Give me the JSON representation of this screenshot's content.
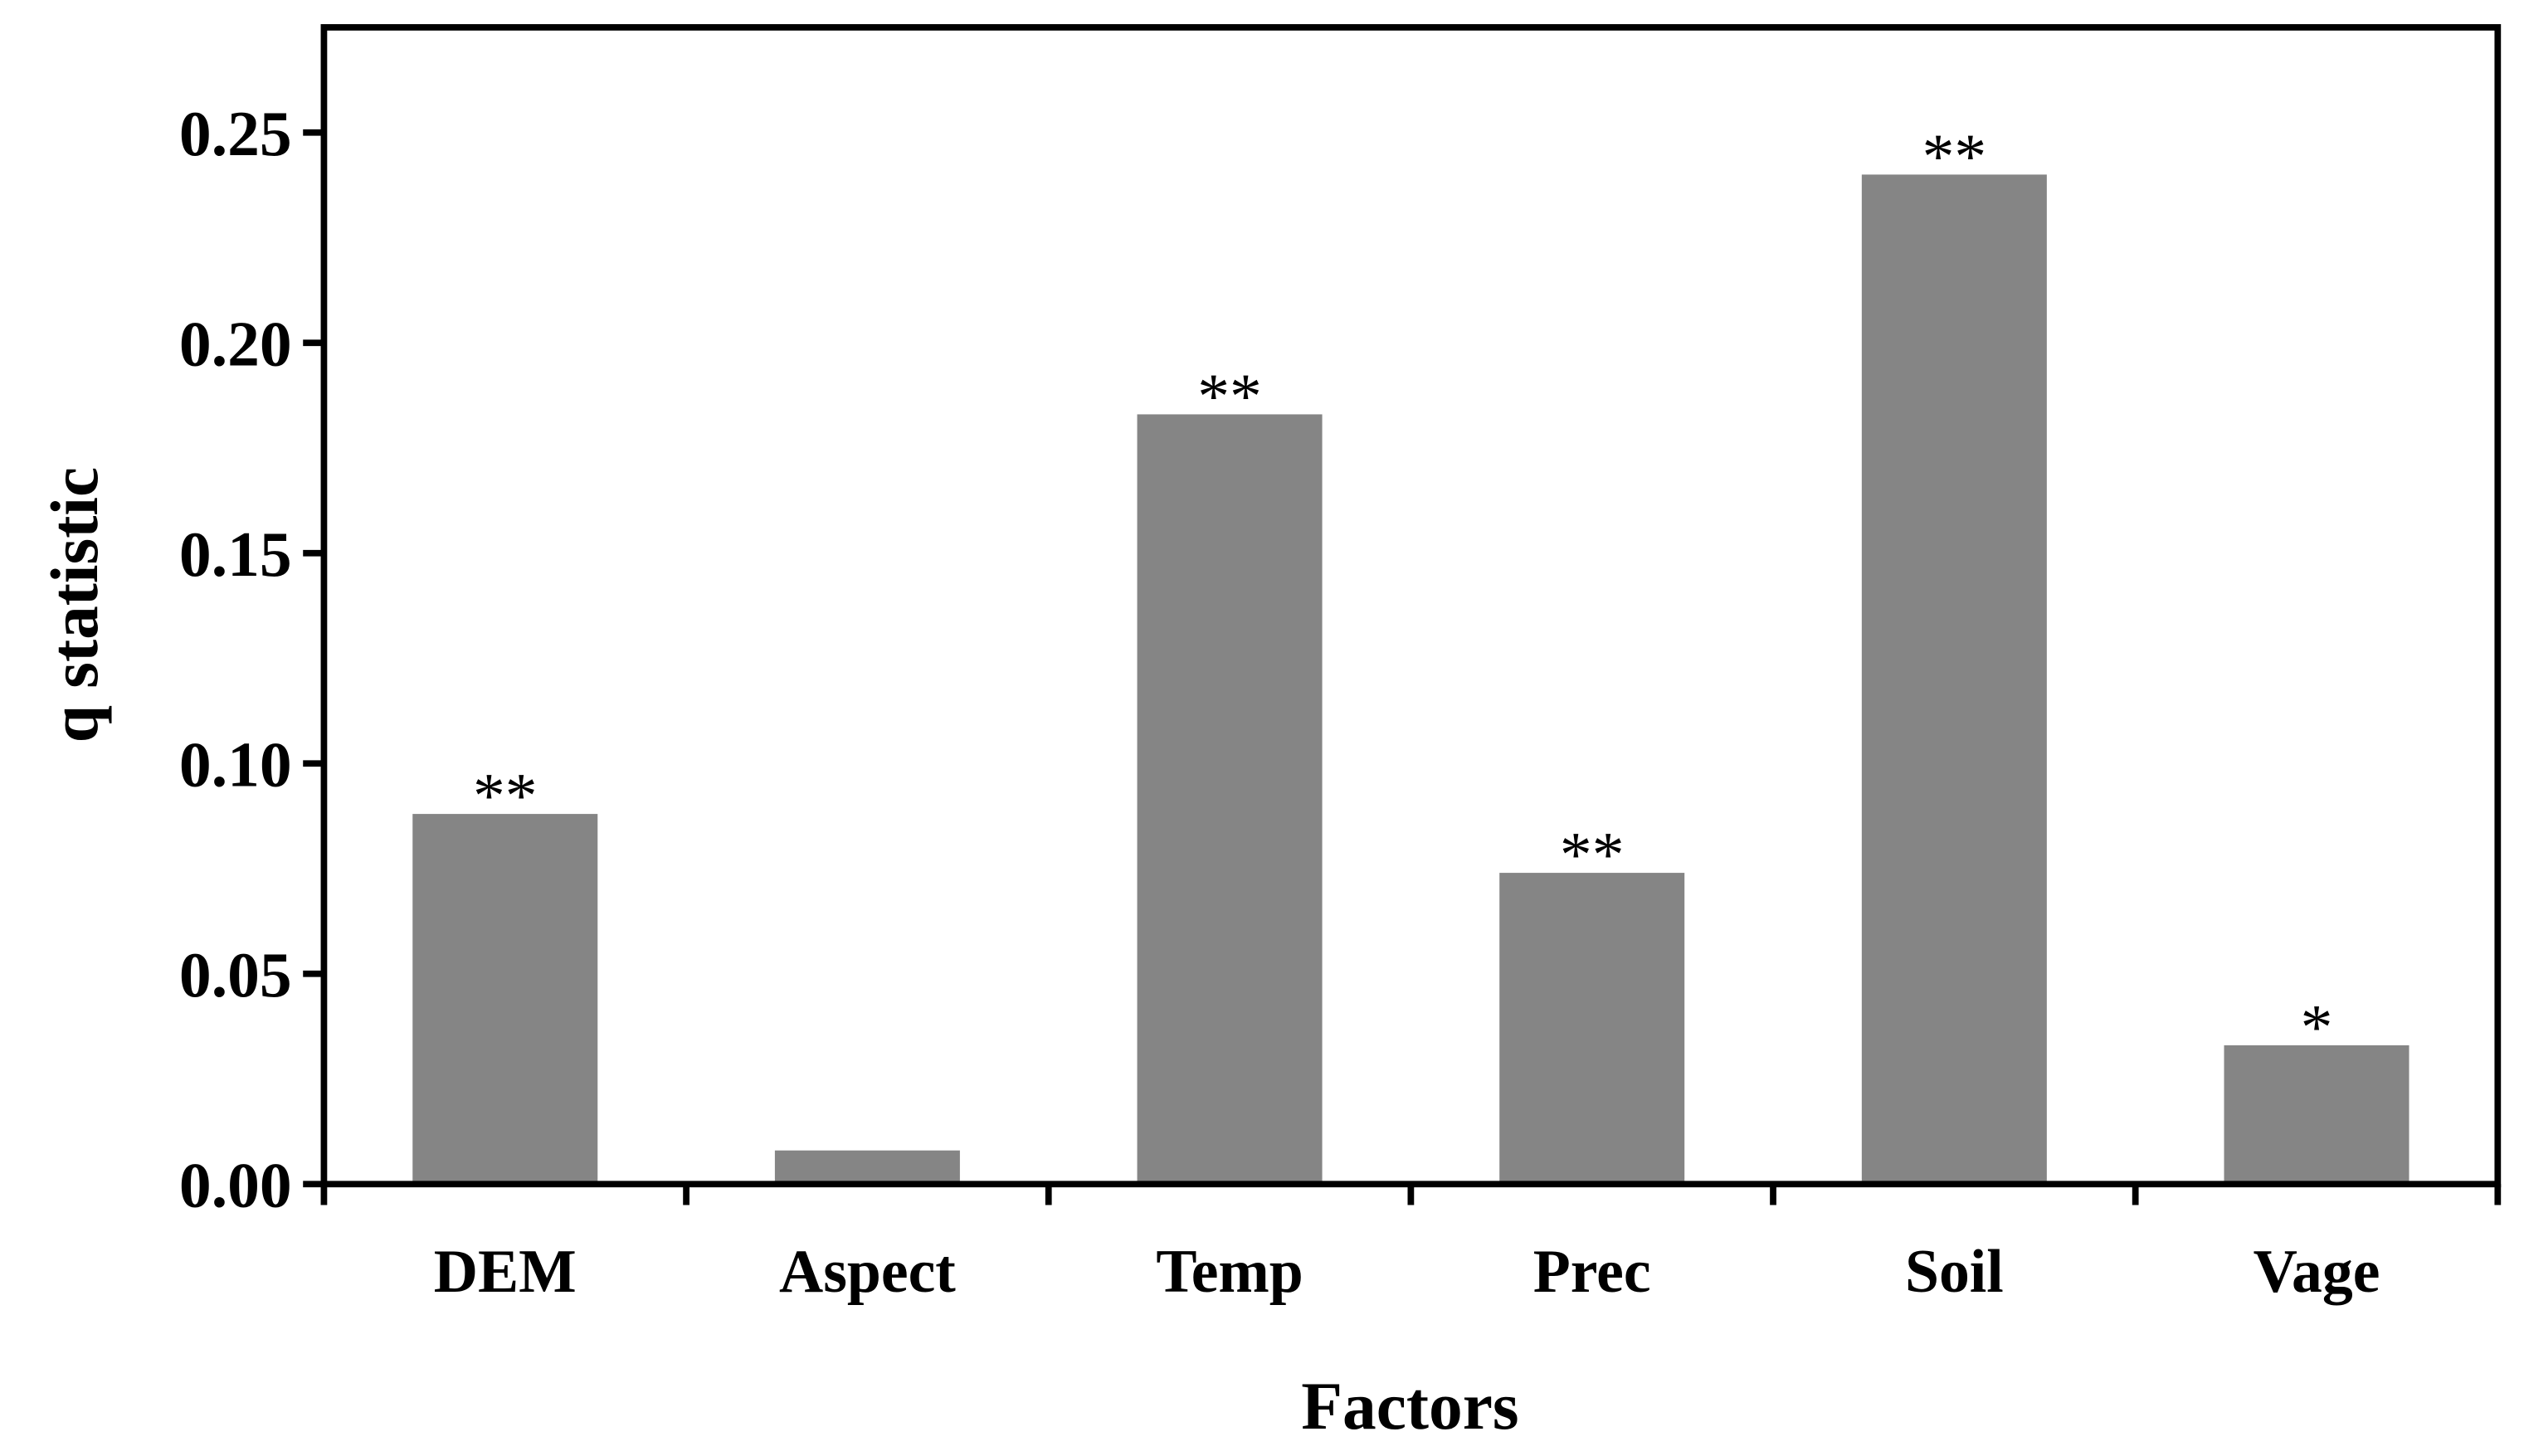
{
  "chart_data": {
    "type": "bar",
    "title": "",
    "xlabel": "Factors",
    "ylabel": "q statistic",
    "categories": [
      "DEM",
      "Aspect",
      "Temp",
      "Prec",
      "Soil",
      "Vage"
    ],
    "values": [
      0.088,
      0.008,
      0.183,
      0.074,
      0.24,
      0.033
    ],
    "annotations": [
      "**",
      "",
      "**",
      "**",
      "**",
      "*"
    ],
    "ylim": [
      0,
      0.275
    ],
    "yticks": [
      "0.00",
      "0.05",
      "0.10",
      "0.15",
      "0.20",
      "0.25"
    ],
    "grid": false,
    "bar_color": "#858585"
  }
}
